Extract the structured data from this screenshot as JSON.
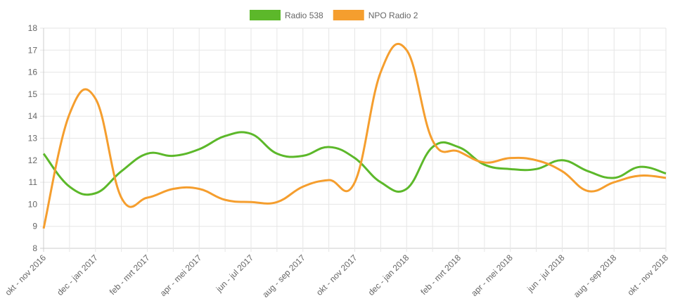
{
  "chart_data": {
    "type": "line",
    "categories": [
      "okt - nov 2016",
      null,
      "dec - jan 2017",
      null,
      "feb - mrt 2017",
      null,
      "apr - mei 2017",
      null,
      "jun - jul 2017",
      null,
      "aug - sep 2017",
      null,
      "okt - nov 2017",
      null,
      "dec - jan 2018",
      null,
      "feb - mrt 2018",
      null,
      "apr - mei 2018",
      null,
      "jun - jul 2018",
      null,
      "aug - sep 2018",
      null,
      "okt - nov 2018"
    ],
    "series": [
      {
        "name": "Radio 538",
        "color": "#5cb82a",
        "values": [
          12.3,
          10.8,
          10.5,
          11.5,
          12.3,
          12.2,
          12.5,
          13.1,
          13.2,
          12.3,
          12.2,
          12.6,
          12.1,
          11.0,
          10.7,
          12.6,
          12.6,
          11.8,
          11.6,
          11.6,
          12.0,
          11.5,
          11.2,
          11.7,
          11.4
        ]
      },
      {
        "name": "NPO Radio 2",
        "color": "#f59e2e",
        "values": [
          8.9,
          14.1,
          14.8,
          10.3,
          10.3,
          10.7,
          10.7,
          10.2,
          10.1,
          10.1,
          10.8,
          11.1,
          11.0,
          16.0,
          17.0,
          12.9,
          12.4,
          11.9,
          12.1,
          12.0,
          11.5,
          10.6,
          11.0,
          11.3,
          11.2
        ]
      }
    ],
    "ylim": [
      8,
      18
    ],
    "yticks": [
      8,
      9,
      10,
      11,
      12,
      13,
      14,
      15,
      16,
      17,
      18
    ],
    "grid": true,
    "legend": "top"
  }
}
